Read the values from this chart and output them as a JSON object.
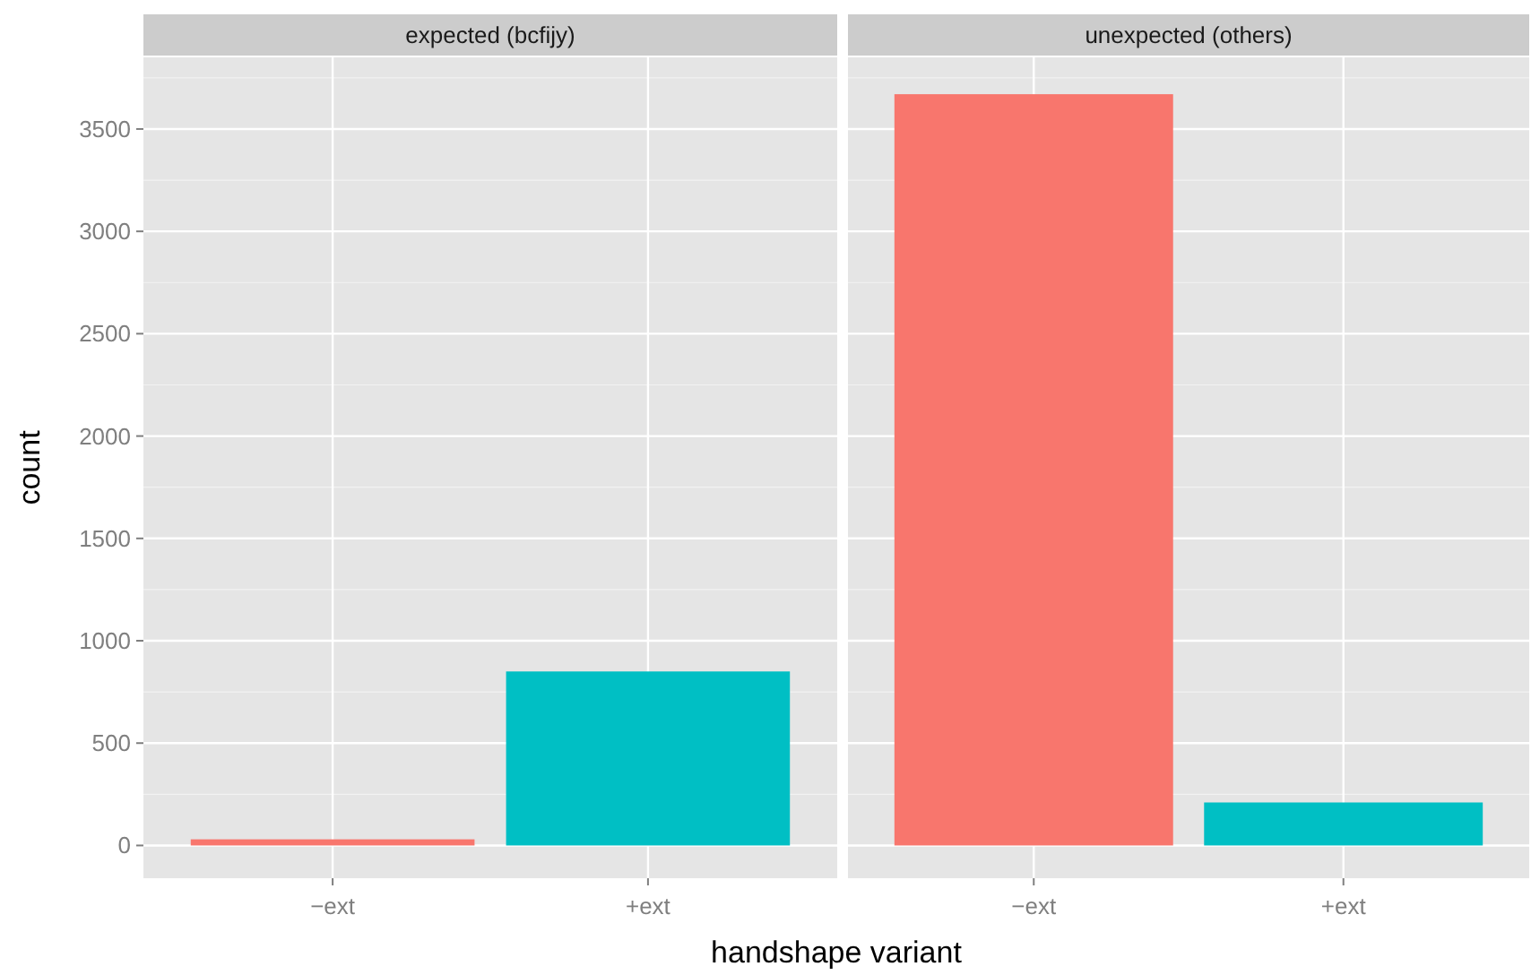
{
  "chart_data": [
    {
      "type": "bar",
      "title": "expected (bcfijy)",
      "xlabel": "handshape variant",
      "ylabel": "count",
      "categories": [
        "−ext",
        "+ext"
      ],
      "colors": [
        "#f8766d",
        "#00bfc4"
      ],
      "values": [
        30,
        850
      ],
      "ylim": [
        -160,
        3850
      ],
      "yticks": [
        0,
        {
          "value": 250,
          "label": null
        },
        500,
        {
          "value": 750,
          "label": null
        },
        1000,
        {
          "value": 1250,
          "label": null
        },
        1500,
        {
          "value": 1750,
          "label": null
        },
        2000,
        {
          "value": 2250,
          "label": null
        },
        2500,
        {
          "value": 2750,
          "label": null
        },
        3000,
        {
          "value": 3250,
          "label": null
        },
        3500,
        {
          "value": 3750,
          "label": null
        }
      ],
      "grid": true
    },
    {
      "type": "bar",
      "title": "unexpected (others)",
      "categories": [
        "−ext",
        "+ext"
      ],
      "colors": [
        "#f8766d",
        "#00bfc4"
      ],
      "values": [
        3670,
        210
      ],
      "ylim": [
        -160,
        3850
      ],
      "yticks": [
        0,
        {
          "value": 250,
          "label": null
        },
        500,
        {
          "value": 750,
          "label": null
        },
        1000,
        {
          "value": 1250,
          "label": null
        },
        1500,
        {
          "value": 1750,
          "label": null
        },
        2000,
        {
          "value": 2250,
          "label": null
        },
        2500,
        {
          "value": 2750,
          "label": null
        },
        3000,
        {
          "value": 3250,
          "label": null
        },
        3500,
        {
          "value": 3750,
          "label": null
        }
      ],
      "grid": true,
      "tick_labels": "x"
    }
  ]
}
